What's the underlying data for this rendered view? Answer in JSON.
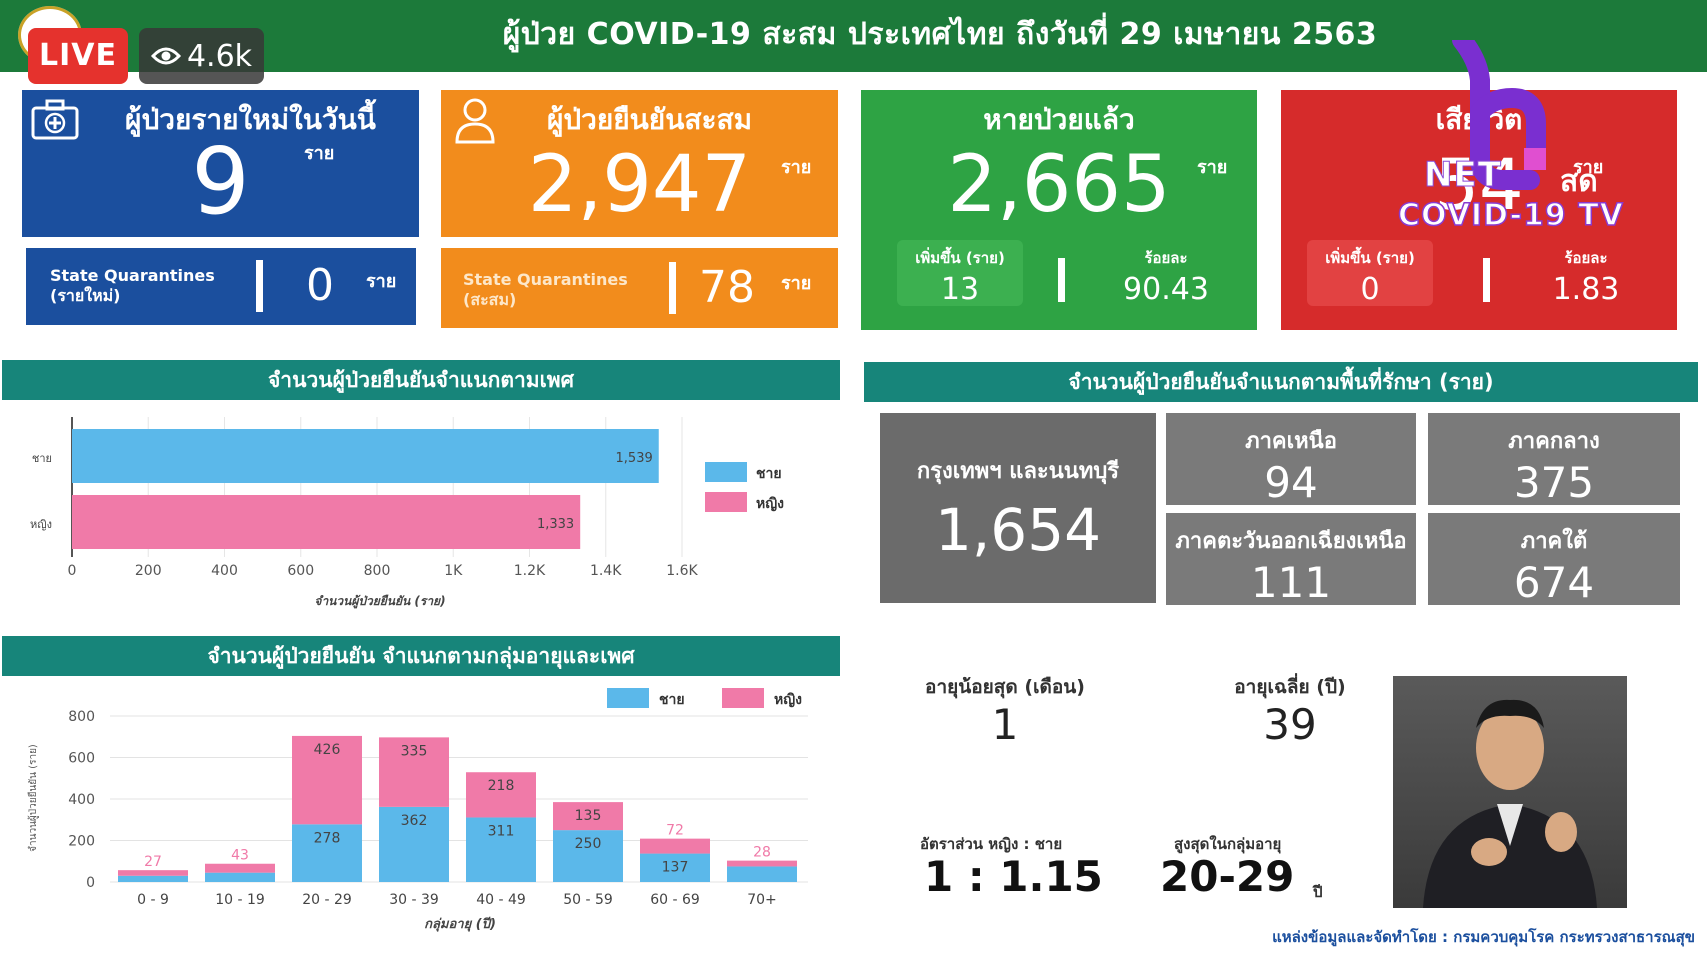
{
  "header": {
    "title": "ผู้ป่วย COVID-19 สะสม  ประเทศไทย ถึงวันที่ 29 เมษายน 2563",
    "live_label": "LIVE",
    "viewers": "4.6k"
  },
  "cards": {
    "new_today": {
      "label": "ผู้ป่วยรายใหม่ในวันนี้",
      "value": "9",
      "unit": "ราย"
    },
    "new_sq": {
      "label_line1": "State Quarantines",
      "label_line2": "(รายใหม่)",
      "value": "0",
      "unit": "ราย"
    },
    "confirmed": {
      "label": "ผู้ป่วยยืนยันสะสม",
      "value": "2,947",
      "unit": "ราย"
    },
    "confirmed_sq": {
      "label_line1": "State Quarantines",
      "label_line2": "(สะสม)",
      "value": "78",
      "unit": "ราย"
    },
    "recovered": {
      "label": "หายป่วยแล้ว",
      "value": "2,665",
      "unit": "ราย",
      "add_label": "เพิ่มขึ้น (ราย)",
      "add_value": "13",
      "pct_label": "ร้อยละ",
      "pct_value": "90.43"
    },
    "deaths": {
      "label": "เสีย  วิต",
      "value": "54",
      "unit": "ราย",
      "add_label": "เพิ่มขึ้น (ราย)",
      "add_value": "0",
      "pct_label": "ร้อยละ",
      "pct_value": "1.83"
    }
  },
  "overlay": {
    "net": "NET",
    "sod": "สด",
    "covid_tv": "COVID-19 TV"
  },
  "sections": {
    "by_sex": "จำนวนผู้ป่วยยืนยันจำแนกตามเพศ",
    "by_region": "จำนวนผู้ป่วยยืนยันจำแนกตามพื้นที่รักษา (ราย)",
    "by_age": "จำนวนผู้ป่วยยืนยัน จำแนกตามกลุ่มอายุและเพศ"
  },
  "regions": [
    {
      "label": "กรุงเทพฯ และนนทบุรี",
      "value": "1,654"
    },
    {
      "label": "ภาคเหนือ",
      "value": "94"
    },
    {
      "label": "ภาคกลาง",
      "value": "375"
    },
    {
      "label": "ภาคตะวันออกเฉียงเหนือ",
      "value": "111"
    },
    {
      "label": "ภาคใต้",
      "value": "674"
    }
  ],
  "stats": {
    "min_age_label": "อายุน้อยสุด (เดือน)",
    "min_age_value": "1",
    "avg_age_label": "อายุเฉลี่ย (ปี)",
    "avg_age_value": "39",
    "ratio_label": "อัตราส่วน  หญิง : ชาย",
    "ratio_value": "1 : 1.15",
    "peak_label": "สูงสุดในกลุ่มอายุ",
    "peak_value": "20-29",
    "peak_unit": "ปี"
  },
  "footer": "แหล่งข้อมูลและจัดทำโดย : กรมควบคุมโรค กระทรวงสาธารณสุข",
  "colors": {
    "male": "#5bb8ea",
    "female": "#f07aa8",
    "header": "#1c7a3a",
    "banner": "#17857a"
  },
  "chart_data": [
    {
      "type": "bar",
      "orientation": "horizontal",
      "categories": [
        "ชาย",
        "หญิง"
      ],
      "values": [
        1539,
        1333
      ],
      "value_labels": [
        "1,539",
        "1,333"
      ],
      "xlim": [
        0,
        1600
      ],
      "xticks": [
        "0",
        "200",
        "400",
        "600",
        "800",
        "1K",
        "1.2K",
        "1.4K",
        "1.6K"
      ],
      "xlabel": "จำนวนผู้ป่วยยืนยัน (ราย)",
      "legend": [
        {
          "name": "ชาย",
          "color": "#5bb8ea"
        },
        {
          "name": "หญิง",
          "color": "#f07aa8"
        }
      ],
      "legend_position": "right"
    },
    {
      "type": "bar",
      "stacked": true,
      "categories": [
        "0 - 9",
        "10 - 19",
        "20 - 29",
        "30 - 39",
        "40 - 49",
        "50 - 59",
        "60 - 69",
        "70+"
      ],
      "series": [
        {
          "name": "ชาย",
          "color": "#5bb8ea",
          "values": [
            30,
            45,
            278,
            362,
            311,
            250,
            137,
            75
          ],
          "labels": [
            "",
            "",
            "278",
            "362",
            "311",
            "250",
            "137",
            ""
          ]
        },
        {
          "name": "หญิง",
          "color": "#f07aa8",
          "values": [
            27,
            43,
            426,
            335,
            218,
            135,
            72,
            28
          ],
          "labels": [
            "27",
            "43",
            "426",
            "335",
            "218",
            "135",
            "72",
            "28"
          ]
        }
      ],
      "ylim": [
        0,
        800
      ],
      "yticks": [
        "0",
        "200",
        "400",
        "600",
        "800"
      ],
      "xlabel": "กลุ่มอายุ (ปี)",
      "ylabel": "จำนวนผู้ป่วยยืนยัน (ราย)",
      "grid": true,
      "legend_position": "top-right"
    }
  ]
}
